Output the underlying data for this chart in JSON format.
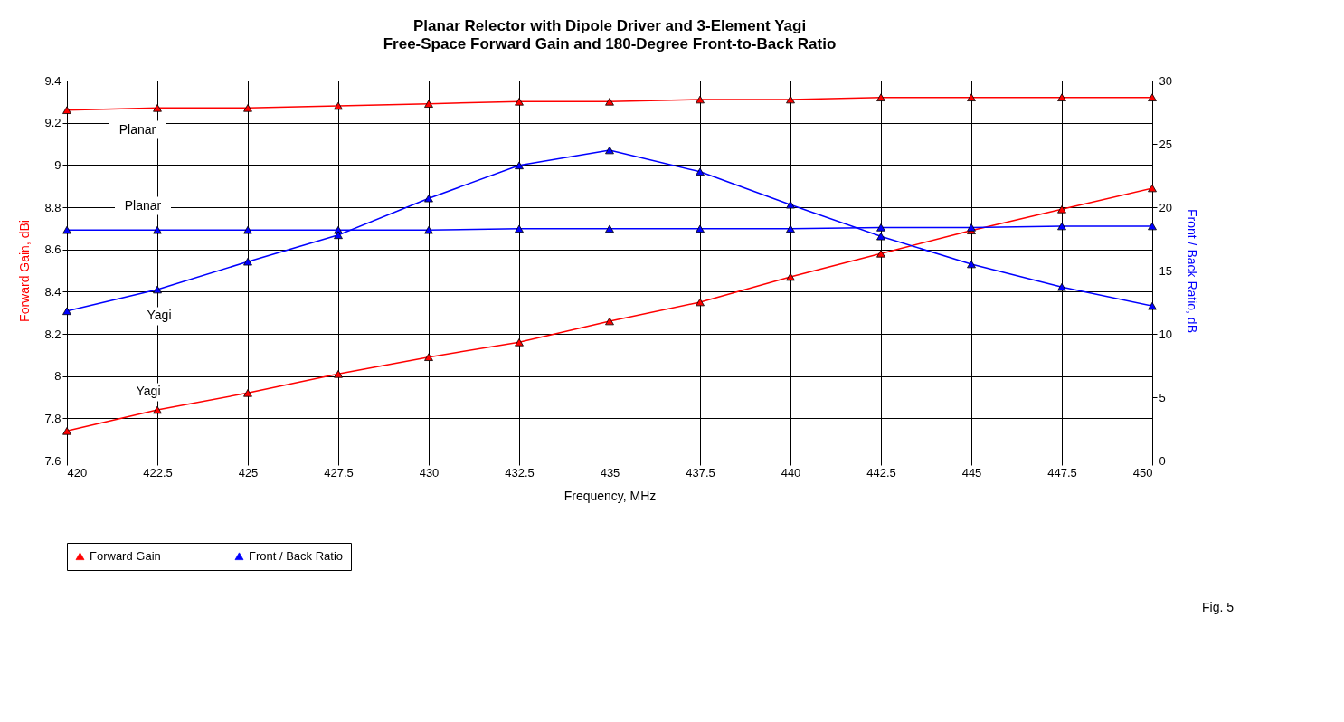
{
  "chart_data": {
    "type": "line",
    "title": "Planar Relector with Dipole Driver and 3-Element Yagi",
    "subtitle": "Free-Space Forward Gain and 180-Degree Front-to-Back Ratio",
    "xlabel": "Frequency, MHz",
    "ylabel": "Forward Gain, dBi",
    "y2label": "Front / Back Ratio, dB",
    "x": [
      420,
      422.5,
      425,
      427.5,
      430,
      432.5,
      435,
      437.5,
      440,
      442.5,
      445,
      447.5,
      450
    ],
    "series": [
      {
        "name": "Forward Gain",
        "color": "#ff0000",
        "values": [
          9.26,
          9.27,
          9.27,
          9.28,
          9.29,
          9.3,
          9.3,
          9.31,
          9.31,
          9.32,
          9.32,
          9.32,
          9.32
        ]
      },
      {
        "color": "#ff0000",
        "values": [
          7.74,
          7.84,
          7.92,
          8.01,
          8.09,
          8.16,
          8.26,
          8.35,
          8.47,
          8.58,
          8.69,
          8.79,
          8.89
        ]
      },
      {
        "name": "Front / Back Ratio",
        "color": "#0000ff",
        "axis": "y2",
        "values": [
          18.2,
          18.2,
          18.2,
          18.2,
          18.2,
          18.3,
          18.3,
          18.3,
          18.3,
          18.4,
          18.4,
          18.5,
          18.5
        ]
      },
      {
        "color": "#0000ff",
        "axis": "y2",
        "values": [
          11.8,
          13.5,
          15.7,
          17.8,
          20.7,
          23.3,
          24.5,
          22.8,
          20.2,
          17.7,
          15.5,
          13.7,
          12.2
        ]
      }
    ],
    "xlim": [
      420,
      450
    ],
    "xticks": [
      420,
      422.5,
      425,
      427.5,
      430,
      432.5,
      435,
      437.5,
      440,
      442.5,
      445,
      447.5,
      450
    ],
    "ylim": [
      7.6,
      9.4
    ],
    "yticks": [
      7.6,
      7.8,
      8,
      8.2,
      8.4,
      8.6,
      8.8,
      9,
      9.2,
      9.4
    ],
    "y2lim": [
      0,
      30
    ],
    "y2ticks": [
      0,
      5,
      10,
      15,
      20,
      25,
      30
    ],
    "annotations": [
      "Planar",
      "Planar",
      "Yagi",
      "Yagi",
      "Fig. 5"
    ],
    "grid": true,
    "legend": "bottom",
    "marker": "triangle",
    "line_style": "solid"
  }
}
